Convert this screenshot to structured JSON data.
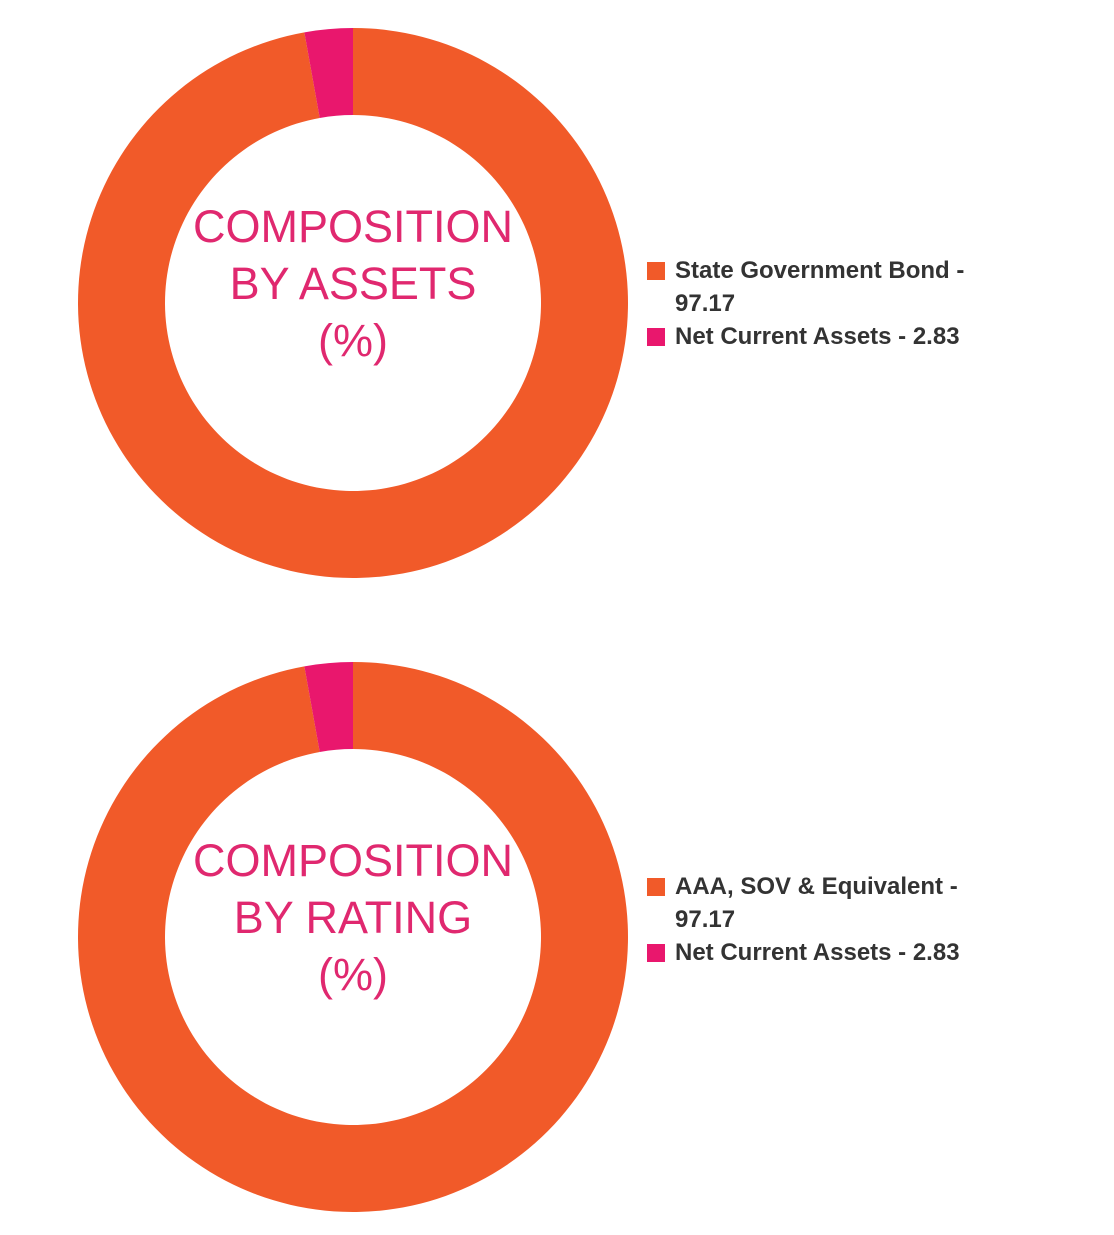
{
  "chart_data": [
    {
      "type": "donut",
      "title": [
        "COMPOSITION",
        "BY ASSETS",
        "(%)"
      ],
      "categories": [
        "State Government Bond - 97.17",
        "Net Current Assets - 2.83"
      ],
      "values": [
        97.17,
        2.83
      ],
      "colors": [
        "#f15a29",
        "#e9176d"
      ]
    },
    {
      "type": "donut",
      "title": [
        "COMPOSITION",
        "BY RATING",
        "(%)"
      ],
      "categories": [
        "AAA, SOV & Equivalent - 97.17",
        "Net Current Assets - 2.83"
      ],
      "values": [
        97.17,
        2.83
      ],
      "colors": [
        "#f15a29",
        "#e9176d"
      ]
    }
  ]
}
